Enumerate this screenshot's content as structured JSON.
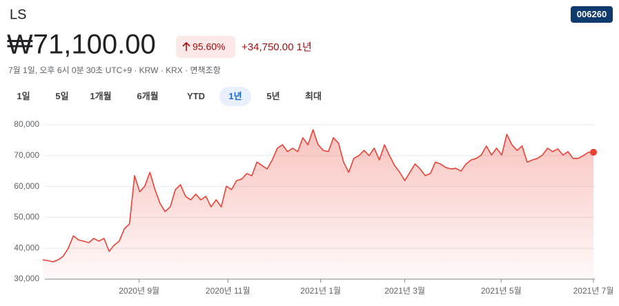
{
  "header": {
    "name": "LS",
    "ticker": "006260",
    "price": "₩71,100.00",
    "change_percent": "95.60%",
    "change": "+34,750.00 1년",
    "subtitle": "7월 1일, 오후 6시 0분 30초 UTC+9 · KRW · KRX · 면책조항"
  },
  "tabs": {
    "items": [
      "1일",
      "5일",
      "1개월",
      "6개월",
      "YTD",
      "1년",
      "5년",
      "최대"
    ],
    "selected": 5
  },
  "chart_data": {
    "type": "line",
    "color": "#e94235",
    "grid": true,
    "values": [
      36250,
      36000,
      35600,
      36250,
      37400,
      40000,
      44000,
      42700,
      42300,
      41800,
      43200,
      42300,
      43200,
      39000,
      41000,
      42300,
      46300,
      47900,
      63500,
      58300,
      60100,
      64600,
      59000,
      54500,
      51900,
      53400,
      59000,
      60600,
      56800,
      55700,
      57500,
      55700,
      56800,
      53400,
      55700,
      53400,
      60100,
      59000,
      61900,
      62400,
      64200,
      63500,
      67900,
      66800,
      65700,
      68600,
      72400,
      73500,
      71300,
      72400,
      71300,
      75800,
      73500,
      78400,
      73500,
      71700,
      71300,
      75800,
      74000,
      67900,
      64600,
      69100,
      70000,
      71700,
      70000,
      72400,
      68600,
      73500,
      70000,
      66800,
      64600,
      61900,
      64600,
      67300,
      65700,
      63500,
      64200,
      67900,
      67300,
      66200,
      65700,
      65900,
      65000,
      67300,
      68600,
      69100,
      70200,
      73100,
      70200,
      72400,
      70200,
      76900,
      73500,
      71700,
      73100,
      67900,
      68600,
      69100,
      70200,
      72400,
      71300,
      72200,
      70200,
      71300,
      69100,
      69100,
      70000,
      71100,
      71100
    ],
    "ylim": [
      30000,
      80000
    ],
    "yticks": [
      {
        "value": 30000,
        "label": "30,000"
      },
      {
        "value": 40000,
        "label": "40,000"
      },
      {
        "value": 50000,
        "label": "50,000"
      },
      {
        "value": 60000,
        "label": "60,000"
      },
      {
        "value": 70000,
        "label": "70,000"
      },
      {
        "value": 80000,
        "label": "80,000"
      }
    ],
    "xlim": [
      0,
      108
    ],
    "xticks": [
      {
        "value": 18.9,
        "label": "2020년 9월"
      },
      {
        "value": 36.3,
        "label": "2020년 11월"
      },
      {
        "value": 54.5,
        "label": "2021년 1월"
      },
      {
        "value": 71,
        "label": "2021년 3월"
      },
      {
        "value": 89.9,
        "label": "2021년 5월"
      },
      {
        "value": 108,
        "label": "2021년 7월"
      }
    ]
  }
}
